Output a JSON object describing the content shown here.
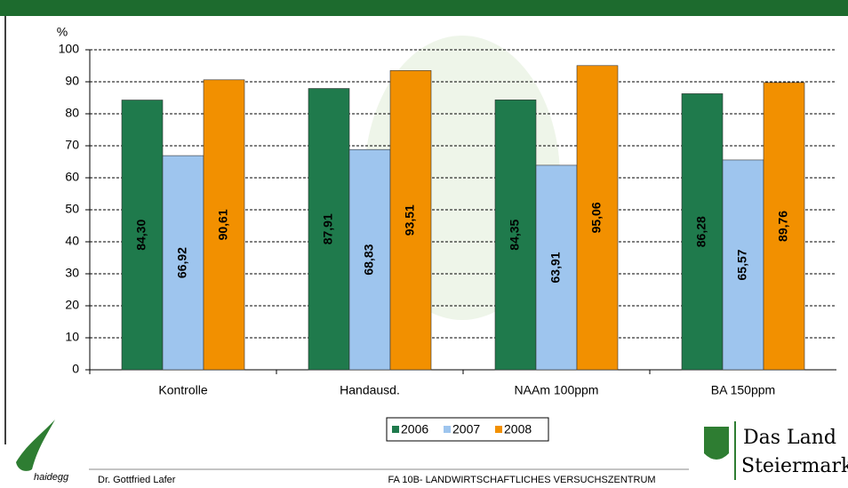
{
  "chart_data": {
    "type": "bar",
    "ylabel": "%",
    "categories": [
      "Kontrolle",
      "Handausd.",
      "NAAm 100ppm",
      "BA 150ppm"
    ],
    "series": [
      {
        "name": "2006",
        "color": "#1f7a4c",
        "values": [
          84.3,
          87.91,
          84.35,
          86.28
        ],
        "value_labels": [
          "84,30",
          "87,91",
          "84,35",
          "86,28"
        ]
      },
      {
        "name": "2007",
        "color": "#9ec5ee",
        "values": [
          66.92,
          68.83,
          63.91,
          65.57
        ],
        "value_labels": [
          "66,92",
          "68,83",
          "63,91",
          "65,57"
        ]
      },
      {
        "name": "2008",
        "color": "#f29000",
        "values": [
          90.61,
          93.51,
          95.06,
          89.76
        ],
        "value_labels": [
          "90,61",
          "93,51",
          "95,06",
          "89,76"
        ]
      }
    ],
    "ylim": [
      0,
      100
    ],
    "yticks": [
      0,
      10,
      20,
      30,
      40,
      50,
      60,
      70,
      80,
      90,
      100
    ],
    "grid": true,
    "legend": "bottom"
  },
  "footer": {
    "logo_text": "haidegg",
    "author": "Dr. Gottfried Lafer",
    "institution": "FA 10B- LANDWIRTSCHAFTLICHES VERSUCHSZENTRUM",
    "brand": [
      "Das Land",
      "Steiermark"
    ]
  }
}
